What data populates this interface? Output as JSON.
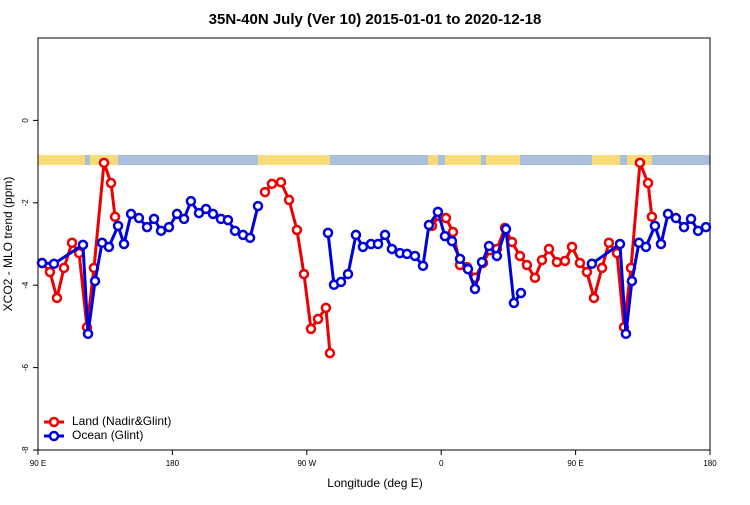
{
  "chart_data": {
    "type": "line",
    "title": "35N-40N July (Ver 10)   2015-01-01 to 2020-12-18",
    "x_label": "Longitude (deg E)",
    "y_label": "XCO2 - MLO trend (ppm)",
    "xlim": [
      90,
      540
    ],
    "xticks": [
      {
        "value": 90,
        "label": "90 E"
      },
      180,
      {
        "value": 270,
        "label": "90 W"
      },
      {
        "value": 360,
        "label": "0"
      },
      {
        "value": 450,
        "label": "90 E"
      },
      {
        "value": 540,
        "label": "180"
      }
    ],
    "ylim": [
      -8,
      2
    ],
    "yticks": [
      -8,
      -6,
      -4,
      -2,
      0
    ],
    "legend": "lower left",
    "series": [
      {
        "name": "Land (Nadir&Glint)",
        "color": "#ee0000",
        "x": [
          92.7,
          98.0,
          102.7,
          107.4,
          112.8,
          117.5,
          122.8,
          127.5,
          134.2,
          138.9,
          141.6,
          190,
          242.0,
          246.7,
          252.7,
          258.1,
          263.4,
          268.1,
          272.8,
          277.5,
          282.8,
          285.5,
          340,
          353.8,
          358.5,
          363.2,
          367.9,
          372.6,
          377.3,
          382.6,
          388.0,
          392.7,
          397.3,
          402.7,
          407.4,
          412.7,
          417.4,
          422.8,
          427.5,
          432.2,
          437.5,
          442.9,
          447.6,
          452.9,
          457.6,
          462.3,
          467.7,
          472.3,
          477.7,
          482.4,
          487.1,
          493.1,
          498.5,
          501.1
        ],
        "values": [
          -3.46,
          -3.68,
          -4.31,
          -3.58,
          -2.97,
          -3.22,
          -5.02,
          -3.58,
          -1.03,
          -1.52,
          -2.34,
          null,
          -1.74,
          -1.54,
          -1.5,
          -1.93,
          -2.66,
          -3.73,
          -5.06,
          -4.82,
          -4.55,
          -5.65,
          null,
          -2.56,
          -2.32,
          -2.37,
          -2.71,
          -3.51,
          -3.56,
          -3.82,
          -3.46,
          -3.15,
          -3.12,
          -2.61,
          -2.95,
          -3.29,
          -3.51,
          -3.82,
          -3.39,
          -3.12,
          -3.44,
          -3.41,
          -3.07,
          -3.46,
          -3.68,
          -4.31,
          -3.58,
          -2.97,
          -3.22,
          -5.02,
          -3.58,
          -1.03,
          -1.52,
          -2.34
        ]
      },
      {
        "name": "Ocean (Glint)",
        "color": "#0000dd",
        "x": [
          92.7,
          100.7,
          120.1,
          123.5,
          128.2,
          132.9,
          137.5,
          143.6,
          147.6,
          152.3,
          157.6,
          163.0,
          167.7,
          172.4,
          177.7,
          183.1,
          187.8,
          192.4,
          197.8,
          202.5,
          207.2,
          212.5,
          217.2,
          221.9,
          227.3,
          232.0,
          237.3,
          280,
          284.2,
          288.2,
          292.9,
          297.6,
          302.9,
          307.6,
          313.0,
          317.7,
          322.4,
          327.0,
          332.4,
          337.1,
          342.4,
          347.8,
          351.8,
          357.8,
          362.5,
          367.2,
          372.6,
          377.9,
          382.6,
          387.3,
          392.0,
          397.3,
          403.4,
          408.7,
          413.4,
          440,
          460.9,
          479.7,
          483.7,
          487.7,
          492.4,
          497.1,
          503.1,
          507.2,
          511.9,
          517.2,
          522.6,
          527.3,
          532.0,
          537.3
        ],
        "values": [
          -3.46,
          -3.48,
          -3.02,
          -5.18,
          -3.9,
          -2.97,
          -3.07,
          -2.56,
          -3.0,
          -2.27,
          -2.37,
          -2.59,
          -2.39,
          -2.68,
          -2.59,
          -2.27,
          -2.39,
          -1.96,
          -2.25,
          -2.15,
          -2.27,
          -2.39,
          -2.42,
          -2.68,
          -2.78,
          -2.85,
          -2.08,
          null,
          -2.73,
          -3.99,
          -3.92,
          -3.73,
          -2.78,
          -3.07,
          -3.0,
          -3.0,
          -2.78,
          -3.12,
          -3.22,
          -3.24,
          -3.29,
          -3.53,
          -2.54,
          -2.22,
          -2.81,
          -2.93,
          -3.36,
          -3.61,
          -4.09,
          -3.44,
          -3.05,
          -3.29,
          -2.64,
          -4.43,
          -4.19,
          null,
          -3.48,
          -3.0,
          -5.18,
          -3.9,
          -2.97,
          -3.07,
          -2.56,
          -3.0,
          -2.27,
          -2.37,
          -2.59,
          -2.39,
          -2.68,
          -2.59
        ]
      }
    ]
  }
}
